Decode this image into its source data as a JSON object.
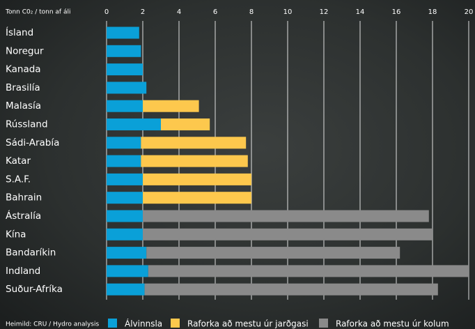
{
  "chart_data": {
    "type": "stacked-bar-horizontal",
    "title": "Tonn C0₂ / tonn af áli",
    "source": "Heimild: CRU / Hydro analysis",
    "categories": [
      "Ísland",
      "Noregur",
      "Kanada",
      "Brasilía",
      "Malasía",
      "Rússland",
      "Sádi-Arabía",
      "Katar",
      "S.A.F.",
      "Bahrain",
      "Ástralía",
      "Kína",
      "Bandaríkin",
      "Indland",
      "Suður-Afríka"
    ],
    "series": [
      {
        "name": "Álvinnsla",
        "color": "#0aa0d8",
        "values": [
          1.8,
          1.9,
          2.0,
          2.2,
          2.0,
          3.0,
          1.9,
          1.9,
          2.0,
          2.0,
          2.0,
          2.0,
          2.2,
          2.3,
          2.1
        ]
      },
      {
        "name": "Raforka að mestu úr jarðgasi",
        "color": "#fdc84d",
        "values": [
          null,
          null,
          null,
          null,
          3.1,
          2.7,
          5.8,
          5.9,
          6.0,
          6.0,
          null,
          null,
          null,
          null,
          null
        ]
      },
      {
        "name": "Raforka að mestu úr kolum",
        "color": "#8a8a8a",
        "values": [
          null,
          null,
          null,
          null,
          null,
          null,
          null,
          null,
          null,
          null,
          15.8,
          16.0,
          14.0,
          17.7,
          16.2
        ]
      }
    ],
    "xlim": [
      0,
      20
    ],
    "xticks": [
      0,
      2,
      4,
      6,
      8,
      10,
      12,
      14,
      16,
      18,
      20
    ],
    "grid": true
  }
}
